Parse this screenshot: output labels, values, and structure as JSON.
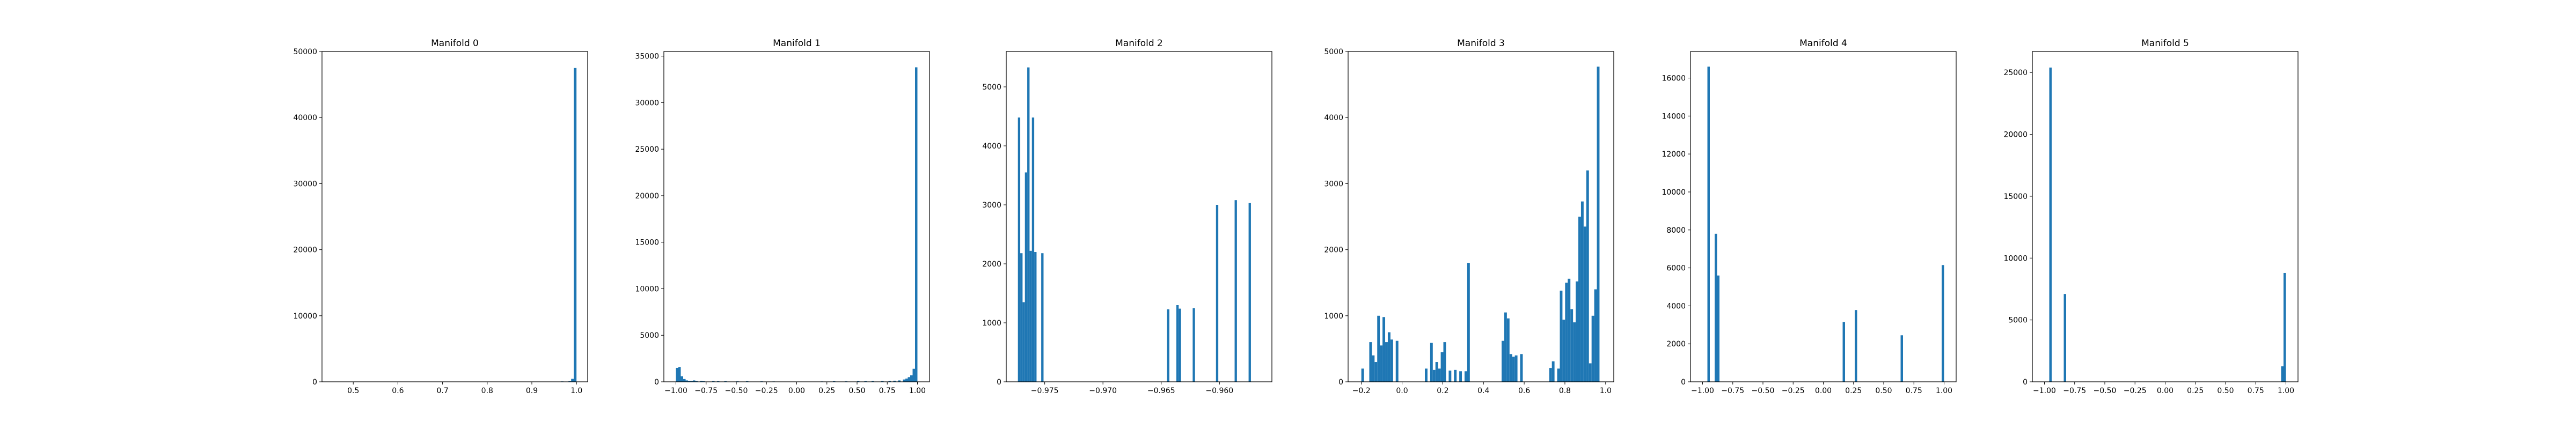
{
  "figure": {
    "bar_color": "#1f77b4",
    "background": "#ffffff"
  },
  "chart_data": [
    {
      "type": "bar",
      "title": "Manifold 0",
      "xlabel": "",
      "ylabel": "",
      "xlim": [
        0.43,
        1.025
      ],
      "ylim": [
        0,
        50000
      ],
      "xticks": [
        0.5,
        0.6,
        0.7,
        0.8,
        0.9,
        1.0
      ],
      "xtick_labels": [
        "0.5",
        "0.6",
        "0.7",
        "0.8",
        "0.9",
        "1.0"
      ],
      "yticks": [
        0,
        10000,
        20000,
        30000,
        40000,
        50000
      ],
      "ytick_labels": [
        "0",
        "10000",
        "20000",
        "30000",
        "40000",
        "50000"
      ],
      "grid": false,
      "bins": [
        {
          "x0": 0.733,
          "x1": 0.739,
          "count": 40
        },
        {
          "x0": 0.965,
          "x1": 0.971,
          "count": 60
        },
        {
          "x0": 0.982,
          "x1": 0.988,
          "count": 80
        },
        {
          "x0": 0.988,
          "x1": 0.994,
          "count": 450
        },
        {
          "x0": 0.994,
          "x1": 1.0,
          "count": 47500
        }
      ]
    },
    {
      "type": "bar",
      "title": "Manifold 1",
      "xlabel": "",
      "ylabel": "",
      "xlim": [
        -1.1,
        1.1
      ],
      "ylim": [
        0,
        35500
      ],
      "xticks": [
        -1.0,
        -0.75,
        -0.5,
        -0.25,
        0.0,
        0.25,
        0.5,
        0.75,
        1.0
      ],
      "xtick_labels": [
        "−1.00",
        "−0.75",
        "−0.50",
        "−0.25",
        "0.00",
        "0.25",
        "0.50",
        "0.75",
        "1.00"
      ],
      "yticks": [
        0,
        5000,
        10000,
        15000,
        20000,
        25000,
        30000,
        35000
      ],
      "ytick_labels": [
        "0",
        "5000",
        "10000",
        "15000",
        "20000",
        "25000",
        "30000",
        "35000"
      ],
      "grid": false,
      "bins": [
        {
          "x0": -1.0,
          "x1": -0.98,
          "count": 1500
        },
        {
          "x0": -0.98,
          "x1": -0.96,
          "count": 1600
        },
        {
          "x0": -0.96,
          "x1": -0.94,
          "count": 600
        },
        {
          "x0": -0.94,
          "x1": -0.92,
          "count": 300
        },
        {
          "x0": -0.92,
          "x1": -0.9,
          "count": 150
        },
        {
          "x0": -0.9,
          "x1": -0.88,
          "count": 100
        },
        {
          "x0": -0.88,
          "x1": -0.86,
          "count": 100
        },
        {
          "x0": -0.86,
          "x1": -0.84,
          "count": 150
        },
        {
          "x0": -0.84,
          "x1": -0.82,
          "count": 80
        },
        {
          "x0": -0.8,
          "x1": -0.78,
          "count": 100
        },
        {
          "x0": -0.78,
          "x1": -0.76,
          "count": 60
        },
        {
          "x0": -0.7,
          "x1": -0.68,
          "count": 80
        },
        {
          "x0": -0.66,
          "x1": -0.64,
          "count": 60
        },
        {
          "x0": -0.6,
          "x1": -0.58,
          "count": 60
        },
        {
          "x0": -0.5,
          "x1": -0.48,
          "count": 50
        },
        {
          "x0": -0.42,
          "x1": -0.4,
          "count": 60
        },
        {
          "x0": -0.3,
          "x1": -0.28,
          "count": 50
        },
        {
          "x0": -0.2,
          "x1": -0.18,
          "count": 40
        },
        {
          "x0": 0.2,
          "x1": 0.22,
          "count": 40
        },
        {
          "x0": 0.3,
          "x1": 0.32,
          "count": 60
        },
        {
          "x0": 0.4,
          "x1": 0.42,
          "count": 50
        },
        {
          "x0": 0.5,
          "x1": 0.52,
          "count": 80
        },
        {
          "x0": 0.56,
          "x1": 0.58,
          "count": 60
        },
        {
          "x0": 0.62,
          "x1": 0.64,
          "count": 80
        },
        {
          "x0": 0.7,
          "x1": 0.72,
          "count": 80
        },
        {
          "x0": 0.76,
          "x1": 0.78,
          "count": 100
        },
        {
          "x0": 0.8,
          "x1": 0.82,
          "count": 120
        },
        {
          "x0": 0.84,
          "x1": 0.86,
          "count": 150
        },
        {
          "x0": 0.88,
          "x1": 0.9,
          "count": 250
        },
        {
          "x0": 0.9,
          "x1": 0.92,
          "count": 350
        },
        {
          "x0": 0.92,
          "x1": 0.94,
          "count": 500
        },
        {
          "x0": 0.94,
          "x1": 0.96,
          "count": 700
        },
        {
          "x0": 0.96,
          "x1": 0.98,
          "count": 1400
        },
        {
          "x0": 0.98,
          "x1": 1.0,
          "count": 33800
        }
      ]
    },
    {
      "type": "bar",
      "title": "Manifold 2",
      "xlabel": "",
      "ylabel": "",
      "xlim": [
        -0.9783,
        -0.9555
      ],
      "ylim": [
        0,
        5600
      ],
      "xticks": [
        -0.975,
        -0.97,
        -0.965,
        -0.96
      ],
      "xtick_labels": [
        "−0.975",
        "−0.970",
        "−0.965",
        "−0.960"
      ],
      "yticks": [
        0,
        1000,
        2000,
        3000,
        4000,
        5000
      ],
      "ytick_labels": [
        "0",
        "1000",
        "2000",
        "3000",
        "4000",
        "5000"
      ],
      "grid": false,
      "bins": [
        {
          "x0": -0.9773,
          "x1": -0.9771,
          "count": 4480
        },
        {
          "x0": -0.9771,
          "x1": -0.9769,
          "count": 2180
        },
        {
          "x0": -0.9769,
          "x1": -0.9767,
          "count": 1350
        },
        {
          "x0": -0.9767,
          "x1": -0.9765,
          "count": 3550
        },
        {
          "x0": -0.9765,
          "x1": -0.9763,
          "count": 5330
        },
        {
          "x0": -0.9763,
          "x1": -0.9761,
          "count": 2220
        },
        {
          "x0": -0.9761,
          "x1": -0.9759,
          "count": 4480
        },
        {
          "x0": -0.9759,
          "x1": -0.9757,
          "count": 2200
        },
        {
          "x0": -0.9753,
          "x1": -0.9751,
          "count": 2180
        },
        {
          "x0": -0.9645,
          "x1": -0.9643,
          "count": 1230
        },
        {
          "x0": -0.9637,
          "x1": -0.9635,
          "count": 1300
        },
        {
          "x0": -0.9635,
          "x1": -0.9633,
          "count": 1240
        },
        {
          "x0": -0.9623,
          "x1": -0.9621,
          "count": 1250
        },
        {
          "x0": -0.9603,
          "x1": -0.9601,
          "count": 3000
        },
        {
          "x0": -0.9587,
          "x1": -0.9585,
          "count": 3080
        },
        {
          "x0": -0.9575,
          "x1": -0.9573,
          "count": 3030
        }
      ]
    },
    {
      "type": "bar",
      "title": "Manifold 3",
      "xlabel": "",
      "ylabel": "",
      "xlim": [
        -0.265,
        1.04
      ],
      "ylim": [
        0,
        5000
      ],
      "xticks": [
        -0.2,
        0.0,
        0.2,
        0.4,
        0.6,
        0.8,
        1.0
      ],
      "xtick_labels": [
        "−0.2",
        "0.0",
        "0.2",
        "0.4",
        "0.6",
        "0.8",
        "1.0"
      ],
      "yticks": [
        0,
        1000,
        2000,
        3000,
        4000,
        5000
      ],
      "ytick_labels": [
        "0",
        "1000",
        "2000",
        "3000",
        "4000",
        "5000"
      ],
      "grid": false,
      "bins": [
        {
          "x0": -0.2,
          "x1": -0.187,
          "count": 200
        },
        {
          "x0": -0.161,
          "x1": -0.148,
          "count": 600
        },
        {
          "x0": -0.148,
          "x1": -0.135,
          "count": 400
        },
        {
          "x0": -0.135,
          "x1": -0.122,
          "count": 300
        },
        {
          "x0": -0.122,
          "x1": -0.109,
          "count": 1000
        },
        {
          "x0": -0.109,
          "x1": -0.096,
          "count": 550
        },
        {
          "x0": -0.096,
          "x1": -0.083,
          "count": 980
        },
        {
          "x0": -0.083,
          "x1": -0.07,
          "count": 600
        },
        {
          "x0": -0.07,
          "x1": -0.057,
          "count": 750
        },
        {
          "x0": -0.057,
          "x1": -0.044,
          "count": 640
        },
        {
          "x0": -0.031,
          "x1": -0.018,
          "count": 620
        },
        {
          "x0": 0.112,
          "x1": 0.125,
          "count": 200
        },
        {
          "x0": 0.138,
          "x1": 0.151,
          "count": 590
        },
        {
          "x0": 0.151,
          "x1": 0.164,
          "count": 180
        },
        {
          "x0": 0.164,
          "x1": 0.177,
          "count": 300
        },
        {
          "x0": 0.177,
          "x1": 0.19,
          "count": 200
        },
        {
          "x0": 0.19,
          "x1": 0.203,
          "count": 450
        },
        {
          "x0": 0.203,
          "x1": 0.216,
          "count": 600
        },
        {
          "x0": 0.229,
          "x1": 0.242,
          "count": 170
        },
        {
          "x0": 0.255,
          "x1": 0.268,
          "count": 180
        },
        {
          "x0": 0.281,
          "x1": 0.294,
          "count": 160
        },
        {
          "x0": 0.307,
          "x1": 0.32,
          "count": 160
        },
        {
          "x0": 0.32,
          "x1": 0.333,
          "count": 1800
        },
        {
          "x0": 0.489,
          "x1": 0.502,
          "count": 620
        },
        {
          "x0": 0.502,
          "x1": 0.515,
          "count": 1050
        },
        {
          "x0": 0.515,
          "x1": 0.528,
          "count": 960
        },
        {
          "x0": 0.528,
          "x1": 0.541,
          "count": 420
        },
        {
          "x0": 0.541,
          "x1": 0.554,
          "count": 380
        },
        {
          "x0": 0.554,
          "x1": 0.567,
          "count": 400
        },
        {
          "x0": 0.58,
          "x1": 0.593,
          "count": 420
        },
        {
          "x0": 0.723,
          "x1": 0.736,
          "count": 210
        },
        {
          "x0": 0.736,
          "x1": 0.749,
          "count": 310
        },
        {
          "x0": 0.762,
          "x1": 0.775,
          "count": 200
        },
        {
          "x0": 0.775,
          "x1": 0.788,
          "count": 1380
        },
        {
          "x0": 0.788,
          "x1": 0.801,
          "count": 940
        },
        {
          "x0": 0.801,
          "x1": 0.814,
          "count": 1500
        },
        {
          "x0": 0.814,
          "x1": 0.827,
          "count": 1560
        },
        {
          "x0": 0.827,
          "x1": 0.84,
          "count": 1100
        },
        {
          "x0": 0.84,
          "x1": 0.853,
          "count": 900
        },
        {
          "x0": 0.853,
          "x1": 0.866,
          "count": 1520
        },
        {
          "x0": 0.866,
          "x1": 0.879,
          "count": 2500
        },
        {
          "x0": 0.879,
          "x1": 0.892,
          "count": 2730
        },
        {
          "x0": 0.892,
          "x1": 0.905,
          "count": 2350
        },
        {
          "x0": 0.905,
          "x1": 0.918,
          "count": 3200
        },
        {
          "x0": 0.918,
          "x1": 0.931,
          "count": 280
        },
        {
          "x0": 0.931,
          "x1": 0.944,
          "count": 1000
        },
        {
          "x0": 0.944,
          "x1": 0.957,
          "count": 1400
        },
        {
          "x0": 0.957,
          "x1": 0.97,
          "count": 4770
        }
      ]
    },
    {
      "type": "bar",
      "title": "Manifold 4",
      "xlabel": "",
      "ylabel": "",
      "xlim": [
        -1.1,
        1.1
      ],
      "ylim": [
        0,
        17400
      ],
      "xticks": [
        -1.0,
        -0.75,
        -0.5,
        -0.25,
        0.0,
        0.25,
        0.5,
        0.75,
        1.0
      ],
      "xtick_labels": [
        "−1.00",
        "−0.75",
        "−0.50",
        "−0.25",
        "0.00",
        "0.25",
        "0.50",
        "0.75",
        "1.00"
      ],
      "yticks": [
        0,
        2000,
        4000,
        6000,
        8000,
        10000,
        12000,
        14000,
        16000
      ],
      "ytick_labels": [
        "0",
        "2000",
        "4000",
        "6000",
        "8000",
        "10000",
        "12000",
        "14000",
        "16000"
      ],
      "grid": false,
      "bins": [
        {
          "x0": -0.96,
          "x1": -0.94,
          "count": 16600
        },
        {
          "x0": -0.9,
          "x1": -0.88,
          "count": 7800
        },
        {
          "x0": -0.88,
          "x1": -0.86,
          "count": 5600
        },
        {
          "x0": 0.16,
          "x1": 0.18,
          "count": 3150
        },
        {
          "x0": 0.26,
          "x1": 0.28,
          "count": 3780
        },
        {
          "x0": 0.64,
          "x1": 0.66,
          "count": 2450
        },
        {
          "x0": 0.98,
          "x1": 1.0,
          "count": 6150
        }
      ]
    },
    {
      "type": "bar",
      "title": "Manifold 5",
      "xlabel": "",
      "ylabel": "",
      "xlim": [
        -1.1,
        1.1
      ],
      "ylim": [
        0,
        26700
      ],
      "xticks": [
        -1.0,
        -0.75,
        -0.5,
        -0.25,
        0.0,
        0.25,
        0.5,
        0.75,
        1.0
      ],
      "xtick_labels": [
        "−1.00",
        "−0.75",
        "−0.50",
        "−0.25",
        "0.00",
        "0.25",
        "0.50",
        "0.75",
        "1.00"
      ],
      "yticks": [
        0,
        5000,
        10000,
        15000,
        20000,
        25000
      ],
      "ytick_labels": [
        "0",
        "5000",
        "10000",
        "15000",
        "20000",
        "25000"
      ],
      "grid": false,
      "bins": [
        {
          "x0": -0.96,
          "x1": -0.94,
          "count": 25400
        },
        {
          "x0": -0.84,
          "x1": -0.82,
          "count": 7100
        },
        {
          "x0": 0.96,
          "x1": 0.98,
          "count": 1250
        },
        {
          "x0": 0.98,
          "x1": 1.0,
          "count": 8800
        }
      ]
    }
  ]
}
